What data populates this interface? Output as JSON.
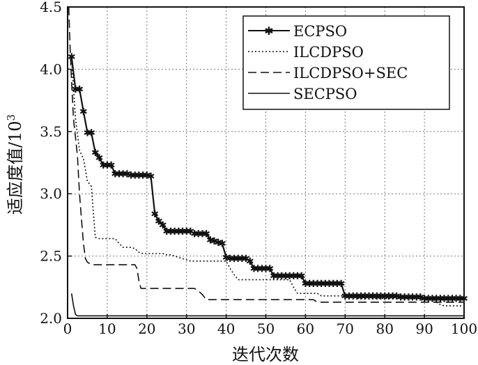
{
  "chart_data": {
    "type": "line",
    "xlabel": "迭代次数",
    "ylabel_main": "适应度值/10",
    "ylabel_exp": "3",
    "xlim": [
      0,
      100
    ],
    "ylim": [
      2.0,
      4.5
    ],
    "x_ticks": [
      0,
      10,
      20,
      30,
      40,
      50,
      60,
      70,
      80,
      90,
      100
    ],
    "y_ticks": [
      "2.0",
      "2.5",
      "3.0",
      "3.5",
      "4.0",
      "4.5"
    ],
    "grid": "dotted",
    "legend_position": "top-right",
    "series": [
      {
        "name": "ECPSO",
        "style": "solid-star",
        "points": [
          [
            1,
            4.1
          ],
          [
            2,
            3.84
          ],
          [
            3,
            3.84
          ],
          [
            4,
            3.66
          ],
          [
            5,
            3.49
          ],
          [
            6,
            3.49
          ],
          [
            7,
            3.33
          ],
          [
            8,
            3.29
          ],
          [
            9,
            3.23
          ],
          [
            10,
            3.23
          ],
          [
            11,
            3.23
          ],
          [
            12,
            3.16
          ],
          [
            13,
            3.16
          ],
          [
            14,
            3.16
          ],
          [
            15,
            3.16
          ],
          [
            16,
            3.15
          ],
          [
            17,
            3.15
          ],
          [
            18,
            3.15
          ],
          [
            19,
            3.15
          ],
          [
            20,
            3.15
          ],
          [
            21,
            3.14
          ],
          [
            22,
            2.84
          ],
          [
            23,
            2.78
          ],
          [
            24,
            2.75
          ],
          [
            25,
            2.7
          ],
          [
            26,
            2.7
          ],
          [
            27,
            2.7
          ],
          [
            28,
            2.7
          ],
          [
            29,
            2.7
          ],
          [
            30,
            2.7
          ],
          [
            31,
            2.7
          ],
          [
            32,
            2.68
          ],
          [
            33,
            2.68
          ],
          [
            34,
            2.68
          ],
          [
            35,
            2.68
          ],
          [
            36,
            2.63
          ],
          [
            37,
            2.62
          ],
          [
            38,
            2.61
          ],
          [
            39,
            2.6
          ],
          [
            40,
            2.49
          ],
          [
            41,
            2.48
          ],
          [
            42,
            2.48
          ],
          [
            43,
            2.48
          ],
          [
            44,
            2.48
          ],
          [
            45,
            2.48
          ],
          [
            46,
            2.46
          ],
          [
            47,
            2.4
          ],
          [
            48,
            2.4
          ],
          [
            49,
            2.4
          ],
          [
            50,
            2.4
          ],
          [
            51,
            2.4
          ],
          [
            52,
            2.34
          ],
          [
            53,
            2.34
          ],
          [
            54,
            2.34
          ],
          [
            55,
            2.34
          ],
          [
            56,
            2.34
          ],
          [
            57,
            2.34
          ],
          [
            58,
            2.34
          ],
          [
            59,
            2.34
          ],
          [
            60,
            2.28
          ],
          [
            61,
            2.28
          ],
          [
            62,
            2.28
          ],
          [
            63,
            2.28
          ],
          [
            64,
            2.28
          ],
          [
            65,
            2.28
          ],
          [
            66,
            2.28
          ],
          [
            67,
            2.28
          ],
          [
            68,
            2.28
          ],
          [
            69,
            2.28
          ],
          [
            70,
            2.18
          ],
          [
            71,
            2.18
          ],
          [
            72,
            2.18
          ],
          [
            73,
            2.18
          ],
          [
            74,
            2.18
          ],
          [
            75,
            2.18
          ],
          [
            76,
            2.18
          ],
          [
            77,
            2.18
          ],
          [
            78,
            2.18
          ],
          [
            79,
            2.18
          ],
          [
            80,
            2.18
          ],
          [
            81,
            2.18
          ],
          [
            82,
            2.18
          ],
          [
            83,
            2.18
          ],
          [
            84,
            2.17
          ],
          [
            85,
            2.17
          ],
          [
            86,
            2.17
          ],
          [
            87,
            2.17
          ],
          [
            88,
            2.17
          ],
          [
            89,
            2.17
          ],
          [
            90,
            2.16
          ],
          [
            91,
            2.16
          ],
          [
            92,
            2.16
          ],
          [
            93,
            2.16
          ],
          [
            94,
            2.16
          ],
          [
            95,
            2.16
          ],
          [
            96,
            2.16
          ],
          [
            97,
            2.16
          ],
          [
            98,
            2.16
          ],
          [
            99,
            2.16
          ],
          [
            100,
            2.16
          ]
        ]
      },
      {
        "name": "ILCDPSO",
        "style": "dotted",
        "points": [
          [
            1,
            4.08
          ],
          [
            2,
            3.6
          ],
          [
            3,
            3.35
          ],
          [
            4,
            3.28
          ],
          [
            5,
            3.1
          ],
          [
            6,
            3.06
          ],
          [
            7,
            2.65
          ],
          [
            8,
            2.64
          ],
          [
            9,
            2.64
          ],
          [
            10,
            2.64
          ],
          [
            11,
            2.64
          ],
          [
            12,
            2.64
          ],
          [
            13,
            2.6
          ],
          [
            14,
            2.57
          ],
          [
            15,
            2.57
          ],
          [
            16,
            2.57
          ],
          [
            17,
            2.56
          ],
          [
            18,
            2.53
          ],
          [
            19,
            2.52
          ],
          [
            20,
            2.52
          ],
          [
            21,
            2.52
          ],
          [
            22,
            2.52
          ],
          [
            23,
            2.52
          ],
          [
            24,
            2.52
          ],
          [
            25,
            2.51
          ],
          [
            26,
            2.51
          ],
          [
            27,
            2.5
          ],
          [
            28,
            2.49
          ],
          [
            29,
            2.48
          ],
          [
            30,
            2.47
          ],
          [
            31,
            2.46
          ],
          [
            32,
            2.46
          ],
          [
            33,
            2.46
          ],
          [
            34,
            2.46
          ],
          [
            35,
            2.46
          ],
          [
            36,
            2.46
          ],
          [
            37,
            2.46
          ],
          [
            38,
            2.46
          ],
          [
            39,
            2.46
          ],
          [
            40,
            2.46
          ],
          [
            41,
            2.4
          ],
          [
            42,
            2.35
          ],
          [
            43,
            2.31
          ],
          [
            44,
            2.31
          ],
          [
            45,
            2.31
          ],
          [
            46,
            2.31
          ],
          [
            47,
            2.31
          ],
          [
            48,
            2.31
          ],
          [
            49,
            2.31
          ],
          [
            50,
            2.31
          ],
          [
            51,
            2.31
          ],
          [
            52,
            2.31
          ],
          [
            53,
            2.31
          ],
          [
            54,
            2.31
          ],
          [
            55,
            2.31
          ],
          [
            56,
            2.31
          ],
          [
            57,
            2.25
          ],
          [
            58,
            2.2
          ],
          [
            59,
            2.2
          ],
          [
            60,
            2.2
          ],
          [
            61,
            2.2
          ],
          [
            62,
            2.2
          ],
          [
            63,
            2.2
          ],
          [
            64,
            2.18
          ],
          [
            65,
            2.18
          ],
          [
            66,
            2.18
          ],
          [
            67,
            2.18
          ],
          [
            68,
            2.18
          ],
          [
            69,
            2.18
          ],
          [
            70,
            2.18
          ],
          [
            71,
            2.18
          ],
          [
            72,
            2.18
          ],
          [
            73,
            2.16
          ],
          [
            74,
            2.16
          ],
          [
            75,
            2.16
          ],
          [
            76,
            2.16
          ],
          [
            77,
            2.16
          ],
          [
            78,
            2.16
          ],
          [
            79,
            2.16
          ],
          [
            80,
            2.16
          ],
          [
            81,
            2.16
          ],
          [
            82,
            2.16
          ],
          [
            83,
            2.16
          ],
          [
            84,
            2.16
          ],
          [
            85,
            2.16
          ],
          [
            86,
            2.16
          ],
          [
            87,
            2.16
          ],
          [
            88,
            2.16
          ],
          [
            89,
            2.16
          ],
          [
            90,
            2.16
          ],
          [
            91,
            2.16
          ],
          [
            92,
            2.16
          ],
          [
            93,
            2.13
          ],
          [
            94,
            2.11
          ],
          [
            95,
            2.1
          ],
          [
            96,
            2.1
          ],
          [
            97,
            2.1
          ],
          [
            98,
            2.1
          ],
          [
            99,
            2.1
          ],
          [
            100,
            2.1
          ]
        ]
      },
      {
        "name": "ILCDPSO+SEC",
        "style": "dashed",
        "points": [
          [
            0.3,
            4.5
          ],
          [
            0.6,
            4.2
          ],
          [
            1,
            3.9
          ],
          [
            1.5,
            3.6
          ],
          [
            2,
            3.45
          ],
          [
            2.5,
            3.3
          ],
          [
            3,
            3.0
          ],
          [
            3.5,
            2.8
          ],
          [
            4,
            2.6
          ],
          [
            4.5,
            2.48
          ],
          [
            5,
            2.45
          ],
          [
            6,
            2.43
          ],
          [
            7,
            2.43
          ],
          [
            8,
            2.43
          ],
          [
            9,
            2.43
          ],
          [
            10,
            2.43
          ],
          [
            11,
            2.43
          ],
          [
            12,
            2.43
          ],
          [
            13,
            2.43
          ],
          [
            14,
            2.43
          ],
          [
            15,
            2.43
          ],
          [
            16,
            2.43
          ],
          [
            17,
            2.43
          ],
          [
            17.5,
            2.4
          ],
          [
            18,
            2.3
          ],
          [
            18.5,
            2.24
          ],
          [
            19,
            2.24
          ],
          [
            20,
            2.24
          ],
          [
            21,
            2.24
          ],
          [
            22,
            2.24
          ],
          [
            23,
            2.24
          ],
          [
            24,
            2.24
          ],
          [
            25,
            2.24
          ],
          [
            26,
            2.24
          ],
          [
            27,
            2.24
          ],
          [
            28,
            2.24
          ],
          [
            29,
            2.24
          ],
          [
            30,
            2.24
          ],
          [
            31,
            2.24
          ],
          [
            32,
            2.24
          ],
          [
            33,
            2.22
          ],
          [
            34,
            2.19
          ],
          [
            35,
            2.15
          ],
          [
            36,
            2.15
          ],
          [
            40,
            2.15
          ],
          [
            45,
            2.15
          ],
          [
            50,
            2.15
          ],
          [
            55,
            2.15
          ],
          [
            60,
            2.15
          ],
          [
            62,
            2.15
          ],
          [
            63,
            2.13
          ],
          [
            64,
            2.13
          ],
          [
            70,
            2.13
          ],
          [
            75,
            2.13
          ],
          [
            80,
            2.13
          ],
          [
            85,
            2.13
          ],
          [
            90,
            2.13
          ],
          [
            95,
            2.13
          ],
          [
            100,
            2.13
          ]
        ]
      },
      {
        "name": "SECPSO",
        "style": "solid",
        "points": [
          [
            1,
            2.2
          ],
          [
            1.5,
            2.1
          ],
          [
            2,
            2.03
          ],
          [
            2.5,
            2.02
          ],
          [
            5,
            2.02
          ],
          [
            10,
            2.02
          ],
          [
            20,
            2.02
          ],
          [
            30,
            2.02
          ],
          [
            40,
            2.02
          ],
          [
            50,
            2.02
          ],
          [
            60,
            2.02
          ],
          [
            70,
            2.02
          ],
          [
            80,
            2.02
          ],
          [
            90,
            2.02
          ],
          [
            100,
            2.02
          ]
        ]
      }
    ]
  }
}
